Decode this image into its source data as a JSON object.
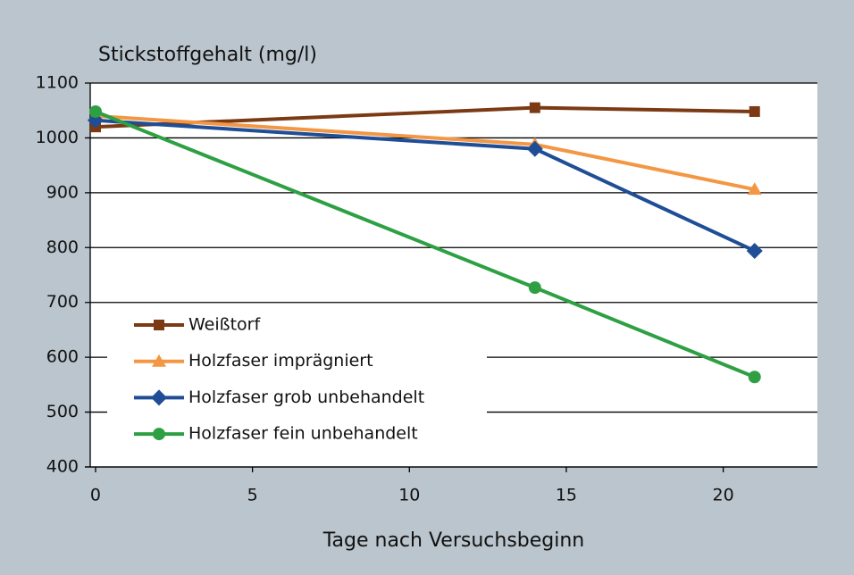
{
  "chart_data": {
    "type": "line",
    "y_axis_label": "Stickstoffgehalt (mg/l)",
    "x_axis_label": "Tage nach Versuchsbeginn",
    "xlim": [
      -0.17,
      23
    ],
    "xticks": [
      0,
      5,
      10,
      15,
      20
    ],
    "ylim": [
      400,
      1100
    ],
    "yticks": [
      400,
      500,
      600,
      700,
      800,
      900,
      1000,
      1100
    ],
    "grid": true,
    "legend": "left",
    "series": [
      {
        "name": "Weißtorf",
        "color": "#7b3a14",
        "marker": "square",
        "x": [
          0,
          14,
          21
        ],
        "values": [
          1020,
          1055,
          1048
        ]
      },
      {
        "name": "Holzfaser imprägniert",
        "color": "#f39744",
        "marker": "triangle",
        "x": [
          0,
          14,
          21
        ],
        "values": [
          1040,
          988,
          906
        ]
      },
      {
        "name": "Holzfaser grob unbehandelt",
        "color": "#1f4e96",
        "marker": "diamond",
        "x": [
          0,
          14,
          21
        ],
        "values": [
          1032,
          980,
          794
        ]
      },
      {
        "name": "Holzfaser fein unbehandelt",
        "color": "#2ea043",
        "marker": "circle",
        "x": [
          0,
          14,
          21
        ],
        "values": [
          1048,
          727,
          564
        ]
      }
    ]
  }
}
